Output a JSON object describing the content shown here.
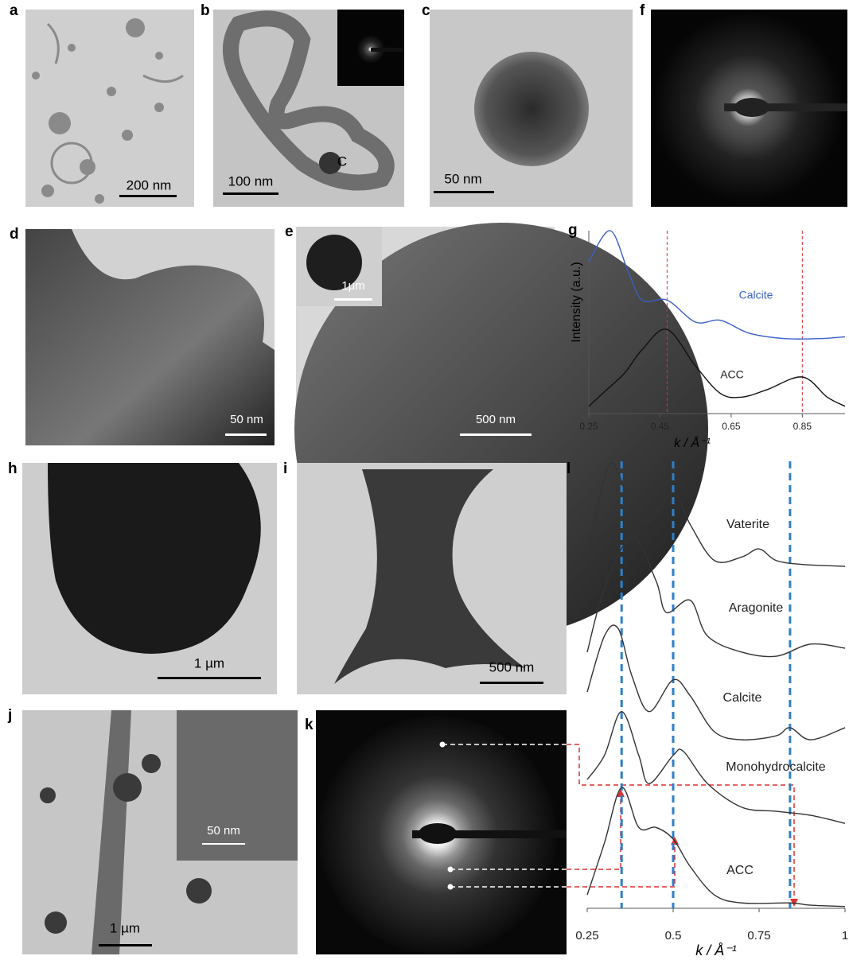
{
  "panels": [
    {
      "label": "a",
      "scale_bar": "200 nm"
    },
    {
      "label": "b",
      "scale_bar": "100 nm",
      "marker": "C"
    },
    {
      "label": "c",
      "scale_bar": "50 nm"
    },
    {
      "label": "f"
    },
    {
      "label": "d",
      "scale_bar": "50 nm"
    },
    {
      "label": "e",
      "scale_bar": "500 nm",
      "inset_scale_bar": "1μm"
    },
    {
      "label": "g"
    },
    {
      "label": "h",
      "scale_bar": "1 µm"
    },
    {
      "label": "i",
      "scale_bar": "500 nm"
    },
    {
      "label": "l"
    },
    {
      "label": "j",
      "scale_bar": "1 µm",
      "inset_scale_bar": "50 nm"
    },
    {
      "label": "k"
    }
  ],
  "chart_data": [
    {
      "type": "line",
      "xlabel": "k / Å⁻¹",
      "ylabel": "Intensity (a.u.)",
      "xlim": [
        0.25,
        0.97
      ],
      "ylim": [
        0,
        1
      ],
      "xticks": [
        0.25,
        0.45,
        0.65,
        0.85
      ],
      "reference_lines": [
        0.47,
        0.85
      ],
      "reference_color": "#e03030",
      "series": [
        {
          "name": "Calcite",
          "color": "#3a5fc8",
          "x": [
            0.25,
            0.31,
            0.36,
            0.4,
            0.47,
            0.55,
            0.62,
            0.7,
            0.8,
            0.9,
            0.97
          ],
          "values": [
            0.83,
            1.0,
            0.78,
            0.62,
            0.62,
            0.5,
            0.51,
            0.44,
            0.41,
            0.41,
            0.42
          ]
        },
        {
          "name": "ACC",
          "color": "#111111",
          "x": [
            0.25,
            0.3,
            0.35,
            0.4,
            0.47,
            0.55,
            0.62,
            0.68,
            0.75,
            0.85,
            0.92,
            0.97
          ],
          "values": [
            0.04,
            0.13,
            0.22,
            0.35,
            0.46,
            0.26,
            0.11,
            0.09,
            0.13,
            0.2,
            0.09,
            0.04
          ]
        }
      ]
    },
    {
      "type": "line",
      "xlabel": "k / Å⁻¹",
      "xlim": [
        0.25,
        1
      ],
      "ylim": [
        0,
        10
      ],
      "xticks": [
        0.25,
        0.5,
        0.75,
        1
      ],
      "reference_lines": [
        0.35,
        0.5,
        0.84
      ],
      "reference_color": "#2f7fc8",
      "series": [
        {
          "name": "Vaterite",
          "color": "#333333",
          "x": [
            0.25,
            0.3,
            0.33,
            0.38,
            0.43,
            0.5,
            0.55,
            0.62,
            0.7,
            0.75,
            0.8,
            0.88,
            1.0
          ],
          "values": [
            7.86,
            9.64,
            9.91,
            8.93,
            8.65,
            9.29,
            8.58,
            7.78,
            7.86,
            8.04,
            7.78,
            7.69,
            7.65
          ]
        },
        {
          "name": "Aragonite",
          "color": "#333333",
          "x": [
            0.25,
            0.3,
            0.38,
            0.45,
            0.48,
            0.55,
            0.6,
            0.7,
            0.8,
            0.9,
            1.0
          ],
          "values": [
            5.73,
            7.15,
            8.31,
            7.33,
            6.62,
            6.89,
            6.09,
            5.73,
            5.64,
            5.91,
            5.82
          ]
        },
        {
          "name": "Calcite",
          "color": "#333333",
          "x": [
            0.25,
            0.3,
            0.34,
            0.38,
            0.43,
            0.5,
            0.55,
            0.62,
            0.7,
            0.8,
            0.84,
            0.9,
            1.0
          ],
          "values": [
            4.84,
            6.09,
            6.26,
            5.2,
            4.4,
            5.11,
            4.75,
            3.95,
            3.77,
            3.86,
            4.04,
            3.77,
            4.04
          ]
        },
        {
          "name": "Monohydrocalcite",
          "color": "#333333",
          "x": [
            0.25,
            0.3,
            0.35,
            0.4,
            0.43,
            0.5,
            0.53,
            0.6,
            0.7,
            0.8,
            0.9,
            1.0
          ],
          "values": [
            2.88,
            3.42,
            4.4,
            3.42,
            2.79,
            3.42,
            3.51,
            2.79,
            2.26,
            2.17,
            2.08,
            1.9
          ]
        },
        {
          "name": "ACC",
          "color": "#333333",
          "x": [
            0.25,
            0.3,
            0.35,
            0.4,
            0.45,
            0.5,
            0.55,
            0.62,
            0.7,
            0.84,
            0.9,
            1.0
          ],
          "values": [
            0.3,
            1.46,
            2.7,
            1.81,
            1.81,
            1.55,
            0.93,
            0.3,
            0.12,
            0.12,
            0.07,
            0.04
          ]
        }
      ]
    }
  ]
}
